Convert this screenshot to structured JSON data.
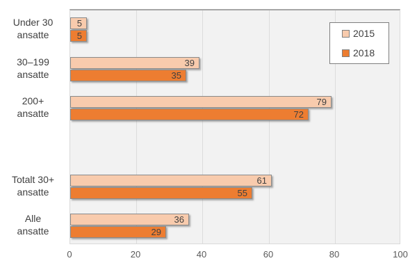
{
  "chart_data": {
    "type": "bar",
    "orientation": "horizontal",
    "title": "",
    "xlabel": "",
    "ylabel": "",
    "categories": [
      [
        "Under 30",
        "ansatte"
      ],
      [
        "30–199",
        "ansatte"
      ],
      [
        "200+",
        "ansatte"
      ],
      [],
      [
        "Totalt 30+",
        "ansatte"
      ],
      [
        "Alle",
        "ansatte"
      ]
    ],
    "series": [
      {
        "name": "2015",
        "color": "#f8cbad",
        "values": [
          5,
          39,
          79,
          null,
          61,
          36
        ]
      },
      {
        "name": "2018",
        "color": "#ed7d31",
        "values": [
          5,
          35,
          72,
          null,
          55,
          29
        ]
      }
    ],
    "xlim": [
      0,
      100
    ],
    "x_ticks": [
      0,
      20,
      40,
      60,
      80,
      100
    ],
    "grid": "vertical",
    "legend_position": "top-right",
    "data_labels": "inside-end",
    "colors": {
      "plot_background": "#f2f2f2",
      "gridline": "#dcdcdc",
      "bar_border": "#8a8a8a",
      "value_label_text": "#404040",
      "category_text": "#404040",
      "tick_text": "#595959",
      "legend_border": "#7f7f7f"
    }
  }
}
